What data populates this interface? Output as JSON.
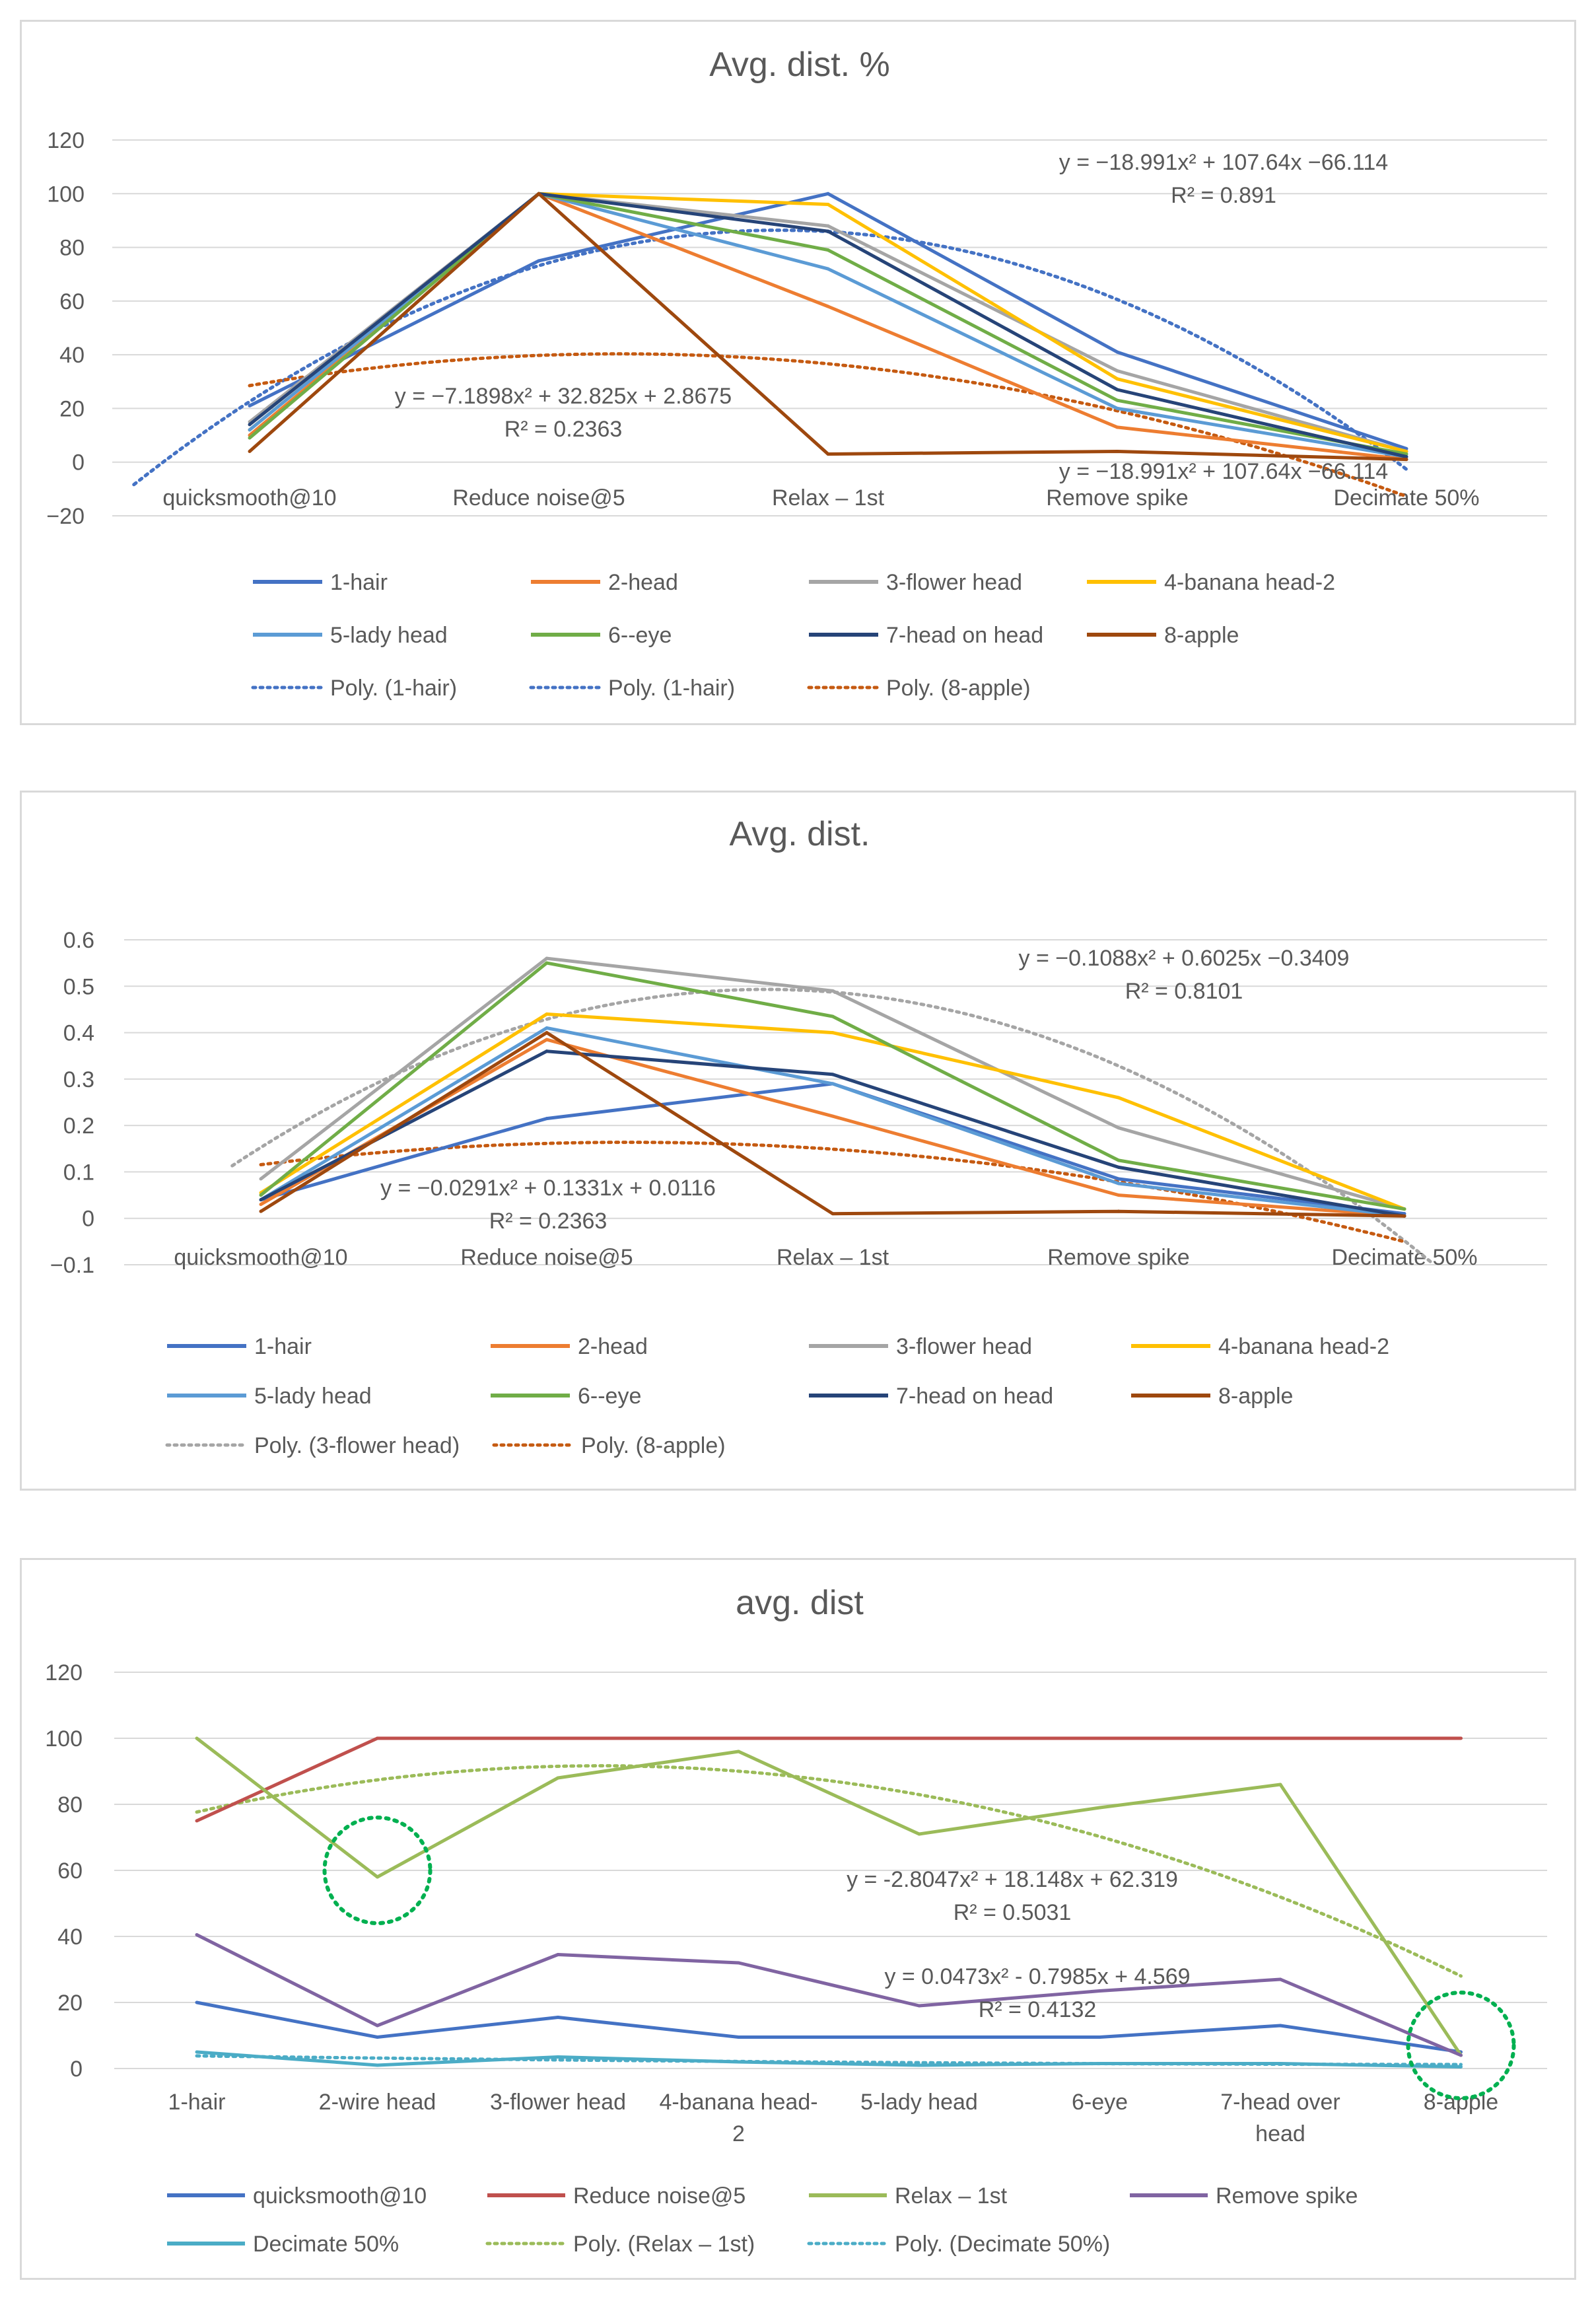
{
  "chart_data": [
    {
      "type": "line",
      "title": "Avg. dist. %",
      "ylim": [
        -20,
        120
      ],
      "yticks": [
        -20,
        0,
        20,
        40,
        60,
        80,
        100,
        120
      ],
      "ytick_labels": [
        "−20",
        "0",
        "20",
        "40",
        "60",
        "80",
        "100",
        "120"
      ],
      "categories": [
        "quicksmooth@10",
        "Reduce noise@5",
        "Relax – 1st",
        "Remove spike",
        "Decimate 50%"
      ],
      "series": [
        {
          "name": "1-hair",
          "color": "#4472C4",
          "values": [
            21,
            75,
            100,
            41,
            5
          ]
        },
        {
          "name": "2-head",
          "color": "#ED7D31",
          "values": [
            10,
            100,
            58,
            13,
            1
          ]
        },
        {
          "name": "3-flower head",
          "color": "#A5A5A5",
          "values": [
            15,
            100,
            88,
            34,
            4
          ]
        },
        {
          "name": "4-banana head-2",
          "color": "#FFC000",
          "values": [
            12,
            100,
            96,
            31,
            4
          ]
        },
        {
          "name": "5-lady head",
          "color": "#5B9BD5",
          "values": [
            12,
            100,
            72,
            20,
            2
          ]
        },
        {
          "name": "6--eye",
          "color": "#70AD47",
          "values": [
            9,
            100,
            79,
            23,
            3
          ]
        },
        {
          "name": "7-head on head",
          "color": "#264478",
          "values": [
            14,
            100,
            86,
            27,
            2
          ]
        },
        {
          "name": "8-apple",
          "color": "#9E480E",
          "values": [
            4,
            100,
            3,
            4,
            1
          ]
        }
      ],
      "trendlines": [
        {
          "name": "Poly. (1-hair)",
          "color": "#4472C4",
          "coef": [
            -18.991,
            107.64,
            -66.114
          ],
          "xrange": [
            0.6,
            5.0
          ]
        },
        {
          "name": "Poly. (1-hair)",
          "color": "#4472C4",
          "coef": [
            -18.991,
            107.64,
            -66.114
          ],
          "xrange": [
            0.6,
            5.0
          ]
        },
        {
          "name": "Poly. (8-apple)",
          "color": "#C55A11",
          "coef": [
            -7.1898,
            32.825,
            2.8675
          ],
          "xrange": [
            1.0,
            5.0
          ]
        }
      ],
      "annotations": [
        {
          "eq": "y = −18.991x² + 107.64x −66.114",
          "r2": "R² = 0.891"
        },
        {
          "eq": "y = −7.1898x² + 32.825x + 2.8675",
          "r2": "R² = 0.2363"
        },
        {
          "eq": "y = −18.991x² + 107.64x −66.114",
          "r2": ""
        }
      ],
      "legend_position": "bottom"
    },
    {
      "type": "line",
      "title": "Avg. dist.",
      "ylim": [
        -0.1,
        0.6
      ],
      "yticks": [
        -0.1,
        0,
        0.1,
        0.2,
        0.3,
        0.4,
        0.5,
        0.6
      ],
      "ytick_labels": [
        "−0.1",
        "0",
        "0.1",
        "0.2",
        "0.3",
        "0.4",
        "0.5",
        "0.6"
      ],
      "categories": [
        "quicksmooth@10",
        "Reduce noise@5",
        "Relax – 1st",
        "Remove spike",
        "Decimate 50%"
      ],
      "series": [
        {
          "name": "1-hair",
          "color": "#4472C4",
          "values": [
            0.04,
            0.215,
            0.29,
            0.085,
            0.01
          ]
        },
        {
          "name": "2-head",
          "color": "#ED7D31",
          "values": [
            0.03,
            0.385,
            0.22,
            0.05,
            0.005
          ]
        },
        {
          "name": "3-flower head",
          "color": "#A5A5A5",
          "values": [
            0.085,
            0.56,
            0.49,
            0.195,
            0.02
          ]
        },
        {
          "name": "4-banana head-2",
          "color": "#FFC000",
          "values": [
            0.055,
            0.44,
            0.4,
            0.26,
            0.02
          ]
        },
        {
          "name": "5-lady head",
          "color": "#5B9BD5",
          "values": [
            0.04,
            0.41,
            0.29,
            0.075,
            0.005
          ]
        },
        {
          "name": "6--eye",
          "color": "#70AD47",
          "values": [
            0.05,
            0.55,
            0.435,
            0.125,
            0.02
          ]
        },
        {
          "name": "7-head on head",
          "color": "#264478",
          "values": [
            0.04,
            0.36,
            0.31,
            0.11,
            0.005
          ]
        },
        {
          "name": "8-apple",
          "color": "#9E480E",
          "values": [
            0.015,
            0.4,
            0.01,
            0.015,
            0.005
          ]
        }
      ],
      "trendlines": [
        {
          "name": "Poly. (3-flower head)",
          "color": "#A5A5A5",
          "coef": [
            -0.1088,
            0.6025,
            -0.3409
          ],
          "xrange": [
            0.9,
            5.1
          ]
        },
        {
          "name": "Poly. (8-apple)",
          "color": "#C55A11",
          "coef": [
            -0.0291,
            0.1331,
            0.0116
          ],
          "xrange": [
            1.0,
            5.0
          ]
        }
      ],
      "annotations": [
        {
          "eq": "y = −0.1088x² + 0.6025x −0.3409",
          "r2": "R² = 0.8101"
        },
        {
          "eq": "y = −0.0291x² + 0.1331x + 0.0116",
          "r2": "R² = 0.2363"
        }
      ],
      "legend_position": "bottom"
    },
    {
      "type": "line",
      "title": "avg. dist",
      "ylim": [
        0,
        120
      ],
      "yticks": [
        0,
        20,
        40,
        60,
        80,
        100,
        120
      ],
      "ytick_labels": [
        "0",
        "20",
        "40",
        "60",
        "80",
        "100",
        "120"
      ],
      "categories": [
        "1-hair",
        "2-wire head",
        "3-flower head",
        "4-banana head-2",
        "5-lady head",
        "6-eye",
        "7-head over head",
        "8-apple"
      ],
      "category_lines": [
        [
          "1-hair"
        ],
        [
          "2-wire head"
        ],
        [
          "3-flower head"
        ],
        [
          "4-banana head-",
          "2"
        ],
        [
          "5-lady head"
        ],
        [
          "6-eye"
        ],
        [
          "7-head over",
          "head"
        ],
        [
          "8-apple"
        ]
      ],
      "series": [
        {
          "name": "quicksmooth@10",
          "color": "#4472C4",
          "values": [
            20,
            9.5,
            15.5,
            9.5,
            9.5,
            9.5,
            13,
            5
          ]
        },
        {
          "name": "Reduce noise@5",
          "color": "#C0504D",
          "values": [
            75,
            100,
            100,
            100,
            100,
            100,
            100,
            100
          ]
        },
        {
          "name": "Relax – 1st",
          "color": "#9BBB59",
          "values": [
            100,
            58,
            88,
            96,
            71,
            79,
            86,
            4
          ]
        },
        {
          "name": "Remove spike",
          "color": "#8064A2",
          "values": [
            40.5,
            13,
            34.5,
            32,
            19,
            23.5,
            27,
            4
          ]
        },
        {
          "name": "Decimate 50%",
          "color": "#4BACC6",
          "values": [
            5,
            1,
            3.5,
            2,
            1,
            1.5,
            1.5,
            0.5
          ]
        }
      ],
      "trendlines": [
        {
          "name": "Poly. (Relax – 1st)",
          "color": "#9BBB59",
          "coef": [
            -2.8047,
            18.148,
            62.319
          ],
          "xrange": [
            1.0,
            8.0
          ]
        },
        {
          "name": "Poly. (Decimate 50%)",
          "color": "#4BACC6",
          "coef": [
            0.0473,
            -0.7985,
            4.569
          ],
          "xrange": [
            1.0,
            8.0
          ]
        }
      ],
      "annotations": [
        {
          "eq": "y = -2.8047x² + 18.148x + 62.319",
          "r2": "R² = 0.5031"
        },
        {
          "eq": "y = 0.0473x² - 0.7985x + 4.569",
          "r2": "R² = 0.4132"
        }
      ],
      "highlights": [
        {
          "category": "2-wire head",
          "value": 60,
          "color": "#00B050"
        },
        {
          "category": "8-apple",
          "value": 7,
          "color": "#00B050"
        }
      ],
      "legend_position": "bottom"
    }
  ]
}
